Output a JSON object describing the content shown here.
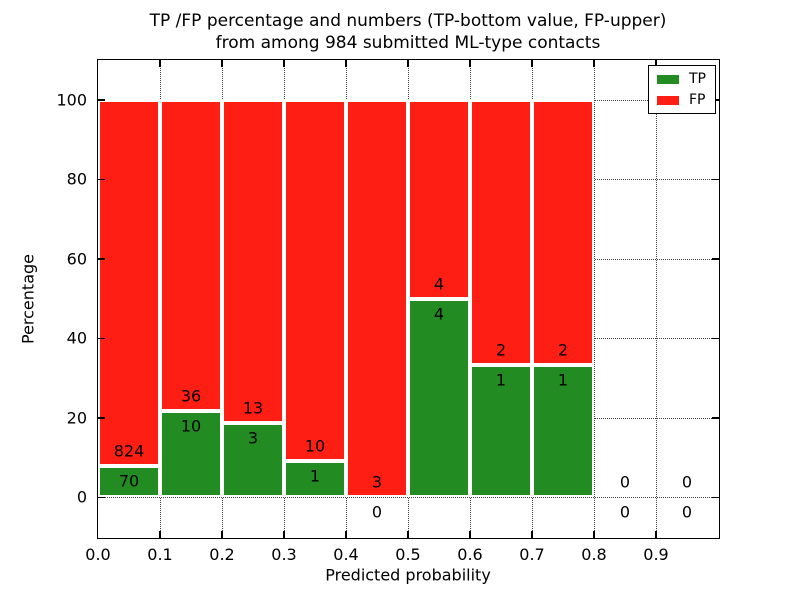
{
  "figure": {
    "title_lines": [
      "TP /FP percentage and numbers (TP-bottom value, FP-upper)",
      "from among 984 submitted ML-type contacts"
    ]
  },
  "chart_data": {
    "type": "bar",
    "stacked": true,
    "percentage_normalized": true,
    "title": "TP /FP percentage and numbers (TP-bottom value, FP-upper)\nfrom among 984 submitted ML-type contacts",
    "title_lines": [
      "TP /FP percentage and numbers (TP-bottom value, FP-upper)",
      "from among 984 submitted ML-type contacts"
    ],
    "xlabel": "Predicted probability",
    "ylabel": "Percentage",
    "xlim": [
      0.0,
      1.0
    ],
    "ylim": [
      -10,
      110
    ],
    "x_tick_labels": [
      "0.0",
      "0.1",
      "0.2",
      "0.3",
      "0.4",
      "0.5",
      "0.6",
      "0.7",
      "0.8",
      "0.9"
    ],
    "y_tick_values": [
      0,
      20,
      40,
      60,
      80,
      100
    ],
    "grid": true,
    "grid_style": "dotted",
    "total_contacts": 984,
    "annotation_rule": "TP count below boundary, FP count above boundary",
    "legend": {
      "position": "upper right",
      "entries": [
        {
          "label": "TP",
          "color": "#228b22"
        },
        {
          "label": "FP",
          "color": "#ff1e14"
        }
      ]
    },
    "colors": {
      "tp": "#228b22",
      "fp": "#ff1e14",
      "bar_edge": "#ffffff"
    },
    "bins": [
      {
        "x_start": 0.0,
        "x_end": 0.1,
        "tp": 70,
        "fp": 824
      },
      {
        "x_start": 0.1,
        "x_end": 0.2,
        "tp": 10,
        "fp": 36
      },
      {
        "x_start": 0.2,
        "x_end": 0.3,
        "tp": 3,
        "fp": 13
      },
      {
        "x_start": 0.3,
        "x_end": 0.4,
        "tp": 1,
        "fp": 10
      },
      {
        "x_start": 0.4,
        "x_end": 0.5,
        "tp": 0,
        "fp": 3
      },
      {
        "x_start": 0.5,
        "x_end": 0.6,
        "tp": 4,
        "fp": 4
      },
      {
        "x_start": 0.6,
        "x_end": 0.7,
        "tp": 1,
        "fp": 2
      },
      {
        "x_start": 0.7,
        "x_end": 0.8,
        "tp": 1,
        "fp": 2
      },
      {
        "x_start": 0.8,
        "x_end": 0.9,
        "tp": 0,
        "fp": 0
      },
      {
        "x_start": 0.9,
        "x_end": 1.0,
        "tp": 0,
        "fp": 0
      }
    ]
  }
}
